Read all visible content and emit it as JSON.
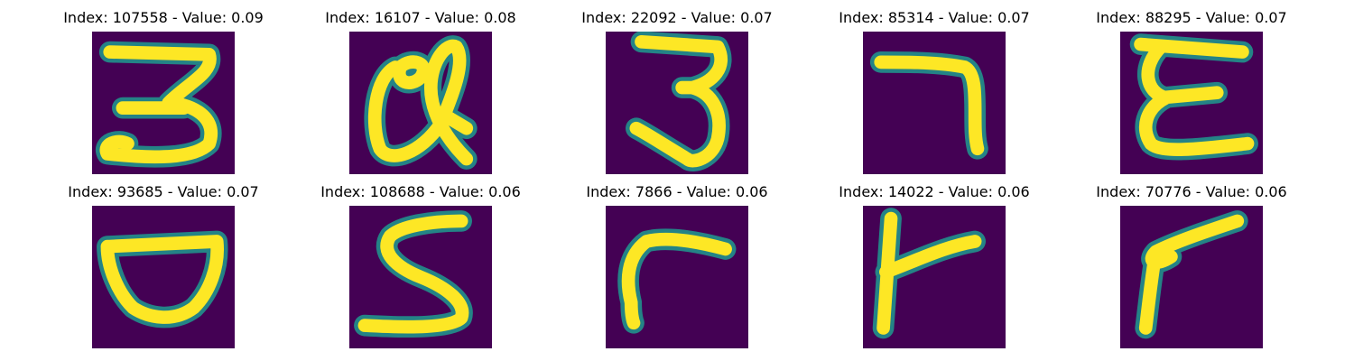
{
  "figure": {
    "colormap": "viridis",
    "colors": {
      "background": "#440154",
      "edge": "#21918c",
      "stroke": "#fde725"
    },
    "panels": [
      {
        "title": "Index: 107558 - Value: 0.09",
        "index": 107558,
        "value": 0.09,
        "glyph": "3"
      },
      {
        "title": "Index: 16107 - Value: 0.08",
        "index": 16107,
        "value": 0.08,
        "glyph": "a"
      },
      {
        "title": "Index: 22092 - Value: 0.07",
        "index": 22092,
        "value": 0.07,
        "glyph": "3"
      },
      {
        "title": "Index: 85314 - Value: 0.07",
        "index": 85314,
        "value": 0.07,
        "glyph": "7"
      },
      {
        "title": "Index: 88295 - Value: 0.07",
        "index": 88295,
        "value": 0.07,
        "glyph": "E"
      },
      {
        "title": "Index: 93685 - Value: 0.07",
        "index": 93685,
        "value": 0.07,
        "glyph": "D"
      },
      {
        "title": "Index: 108688 - Value: 0.06",
        "index": 108688,
        "value": 0.06,
        "glyph": "S"
      },
      {
        "title": "Index: 7866 - Value: 0.06",
        "index": 7866,
        "value": 0.06,
        "glyph": "r"
      },
      {
        "title": "Index: 14022 - Value: 0.06",
        "index": 14022,
        "value": 0.06,
        "glyph": "r"
      },
      {
        "title": "Index: 70776 - Value: 0.06",
        "index": 70776,
        "value": 0.06,
        "glyph": "r"
      }
    ]
  }
}
